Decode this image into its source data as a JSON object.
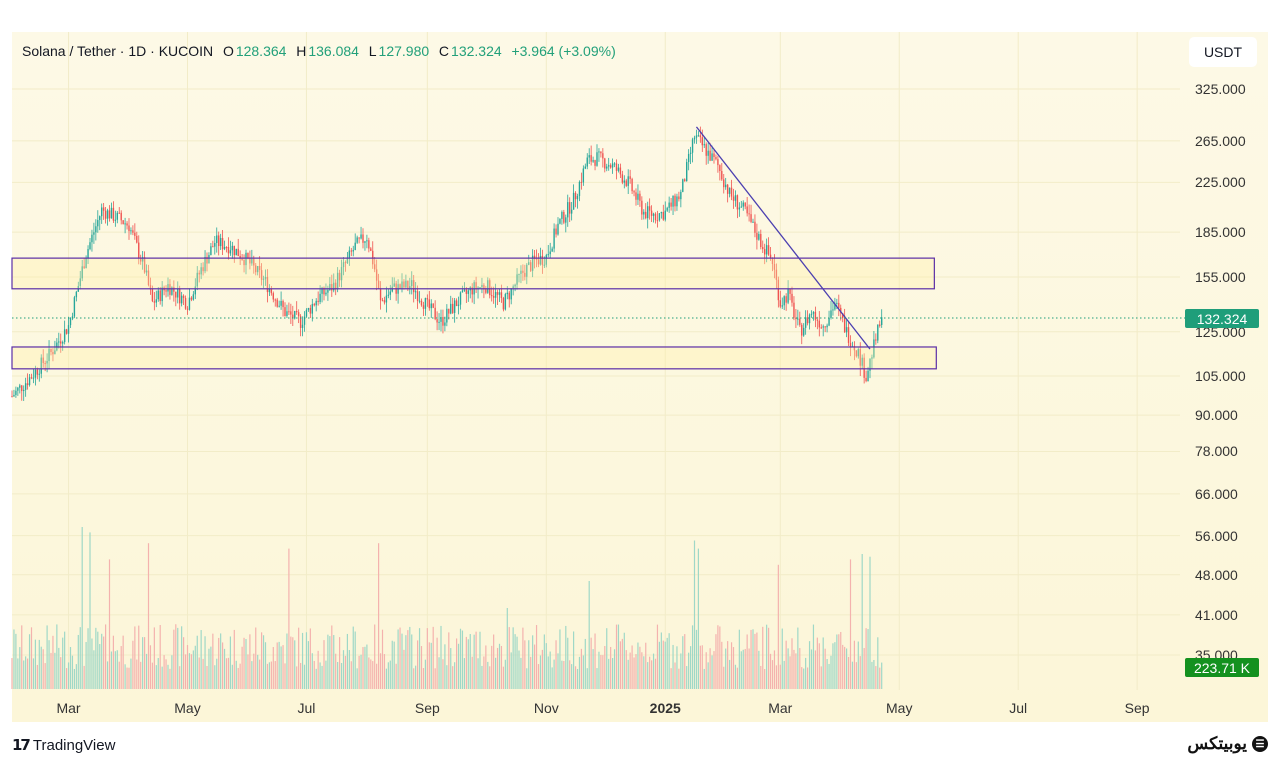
{
  "header": {
    "symbol": "Solana / Tether · 1D · KUCOIN",
    "o_label": "O",
    "o": "128.364",
    "h_label": "H",
    "h": "136.084",
    "l_label": "L",
    "l": "127.980",
    "c_label": "C",
    "c": "132.324",
    "change": "+3.964 (+3.09%)"
  },
  "unit_button": "USDT",
  "last_price_tag": "132.324",
  "volume_tag": "223.71 K",
  "footer": {
    "brand": "TradingView",
    "watermark": "یوبیتکس"
  },
  "colors": {
    "up": "#26a69a",
    "down": "#ef5350",
    "box": "#5b2ea6",
    "trendline": "#4b3fb0",
    "tag": "#1f9e7a",
    "vol_tag": "#14911f"
  },
  "chart_data": {
    "type": "candlestick",
    "title": "Solana / Tether · 1D · KUCOIN",
    "y_scale": "log",
    "ylim": [
      30,
      340
    ],
    "y_ticks": [
      "325.000",
      "265.000",
      "225.000",
      "185.000",
      "155.000",
      "125.000",
      "105.000",
      "90.000",
      "78.000",
      "66.000",
      "56.000",
      "48.000",
      "41.000",
      "35.000"
    ],
    "y_tick_values": [
      325,
      265,
      225,
      185,
      155,
      125,
      105,
      90,
      78,
      66,
      56,
      48,
      41,
      35
    ],
    "x_ticks": [
      {
        "label": "Mar",
        "day": 29
      },
      {
        "label": "May",
        "day": 90
      },
      {
        "label": "Jul",
        "day": 151
      },
      {
        "label": "Sep",
        "day": 213
      },
      {
        "label": "Nov",
        "day": 274
      },
      {
        "label": "2025",
        "day": 335,
        "bold": true
      },
      {
        "label": "Mar",
        "day": 394
      },
      {
        "label": "May",
        "day": 455
      },
      {
        "label": "Jul",
        "day": 516
      },
      {
        "label": "Sep",
        "day": 577
      }
    ],
    "x_range_days": [
      0,
      642
    ],
    "price_anchors": [
      [
        0,
        97
      ],
      [
        10,
        105
      ],
      [
        20,
        115
      ],
      [
        29,
        128
      ],
      [
        38,
        170
      ],
      [
        46,
        202
      ],
      [
        55,
        195
      ],
      [
        60,
        190
      ],
      [
        68,
        160
      ],
      [
        72,
        140
      ],
      [
        80,
        150
      ],
      [
        90,
        140
      ],
      [
        97,
        160
      ],
      [
        104,
        178
      ],
      [
        112,
        175
      ],
      [
        121,
        165
      ],
      [
        130,
        152
      ],
      [
        140,
        135
      ],
      [
        148,
        130
      ],
      [
        156,
        142
      ],
      [
        165,
        150
      ],
      [
        176,
        175
      ],
      [
        182,
        182
      ],
      [
        186,
        160
      ],
      [
        189,
        140
      ],
      [
        195,
        148
      ],
      [
        205,
        150
      ],
      [
        213,
        138
      ],
      [
        220,
        130
      ],
      [
        228,
        140
      ],
      [
        236,
        148
      ],
      [
        243,
        150
      ],
      [
        252,
        140
      ],
      [
        262,
        158
      ],
      [
        268,
        165
      ],
      [
        274,
        168
      ],
      [
        280,
        190
      ],
      [
        288,
        210
      ],
      [
        295,
        245
      ],
      [
        300,
        248
      ],
      [
        308,
        240
      ],
      [
        316,
        225
      ],
      [
        324,
        200
      ],
      [
        330,
        198
      ],
      [
        335,
        200
      ],
      [
        343,
        215
      ],
      [
        350,
        270
      ],
      [
        356,
        255
      ],
      [
        362,
        240
      ],
      [
        368,
        215
      ],
      [
        376,
        200
      ],
      [
        384,
        178
      ],
      [
        390,
        165
      ],
      [
        394,
        140
      ],
      [
        398,
        145
      ],
      [
        404,
        125
      ],
      [
        410,
        135
      ],
      [
        416,
        128
      ],
      [
        422,
        140
      ],
      [
        428,
        125
      ],
      [
        434,
        115
      ],
      [
        438,
        105
      ],
      [
        442,
        118
      ],
      [
        446,
        132.3
      ]
    ],
    "volume_spikes": [
      [
        36,
        60
      ],
      [
        40,
        58
      ],
      [
        50,
        48
      ],
      [
        70,
        54
      ],
      [
        142,
        52
      ],
      [
        188,
        54
      ],
      [
        254,
        30
      ],
      [
        296,
        40
      ],
      [
        350,
        55
      ],
      [
        352,
        52
      ],
      [
        393,
        46
      ],
      [
        430,
        48
      ],
      [
        436,
        50
      ],
      [
        440,
        49
      ]
    ],
    "last_close": 132.324,
    "zones": [
      {
        "name": "upper-zone",
        "top": 167,
        "bottom": 148,
        "start_day": 0,
        "end_day": 473
      },
      {
        "name": "lower-zone",
        "top": 117.7,
        "bottom": 108,
        "start_day": 0,
        "end_day": 474
      }
    ],
    "trendline": {
      "start": [
        351,
        280
      ],
      "end": [
        440,
        116.7
      ]
    }
  }
}
